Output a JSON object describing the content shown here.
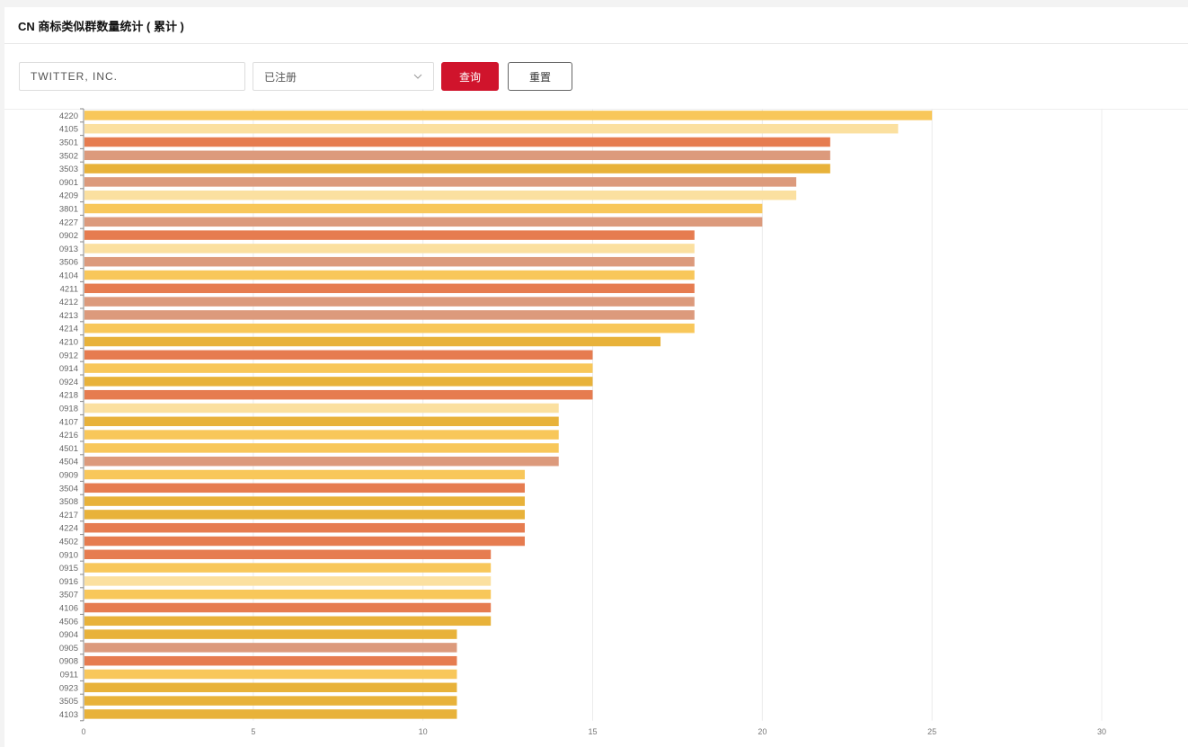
{
  "header": {
    "title": "CN 商标类似群数量统计 ( 累计 )"
  },
  "filters": {
    "company_value": "TWITTER, INC.",
    "status_value": "已注册",
    "query_label": "查询",
    "reset_label": "重置"
  },
  "colors": {
    "A": "#f8c75a",
    "B": "#fbe0a0",
    "C": "#e67c50",
    "D": "#dc9a7c",
    "E": "#e8b23a",
    "grid": "#ececec",
    "axis": "#888"
  },
  "chart_data": {
    "type": "bar",
    "orientation": "horizontal",
    "xlim": [
      0,
      30
    ],
    "xticks": [
      0,
      5,
      10,
      15,
      20,
      25,
      30
    ],
    "grid": true,
    "categories": [
      "4220",
      "4105",
      "3501",
      "3502",
      "3503",
      "0901",
      "4209",
      "3801",
      "4227",
      "0902",
      "0913",
      "3506",
      "4104",
      "4211",
      "4212",
      "4213",
      "4214",
      "4210",
      "0912",
      "0914",
      "0924",
      "4218",
      "0918",
      "4107",
      "4216",
      "4501",
      "4504",
      "0909",
      "3504",
      "3508",
      "4217",
      "4224",
      "4502",
      "0910",
      "0915",
      "0916",
      "3507",
      "4106",
      "4506",
      "0904",
      "0905",
      "0908",
      "0911",
      "0923",
      "3505",
      "4103"
    ],
    "values": [
      25,
      24,
      22,
      22,
      22,
      21,
      21,
      20,
      20,
      18,
      18,
      18,
      18,
      18,
      18,
      18,
      18,
      17,
      15,
      15,
      15,
      15,
      14,
      14,
      14,
      14,
      14,
      13,
      13,
      13,
      13,
      13,
      13,
      12,
      12,
      12,
      12,
      12,
      12,
      11,
      11,
      11,
      11,
      11,
      11,
      11
    ],
    "bar_colors": [
      "A",
      "B",
      "C",
      "D",
      "E",
      "D",
      "B",
      "A",
      "D",
      "C",
      "B",
      "D",
      "A",
      "C",
      "D",
      "D",
      "A",
      "E",
      "C",
      "A",
      "E",
      "C",
      "B",
      "E",
      "A",
      "A",
      "D",
      "A",
      "C",
      "E",
      "E",
      "C",
      "C",
      "C",
      "A",
      "B",
      "A",
      "C",
      "E",
      "E",
      "D",
      "C",
      "A",
      "E",
      "E",
      "E"
    ]
  }
}
